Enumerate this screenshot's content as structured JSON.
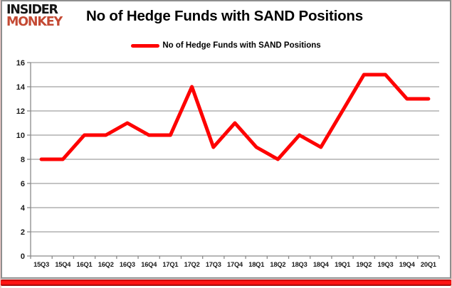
{
  "brand": {
    "line1": "INSIDER",
    "line2": "MONKEY",
    "accent_color": "#C44A34"
  },
  "title": "No of Hedge Funds with SAND Positions",
  "legend": {
    "label": "No of Hedge Funds with SAND Positions",
    "swatch_color": "#FE0000"
  },
  "colors": {
    "series_line": "#FE0000",
    "gridline": "#8A8A8A",
    "axis_text": "#1A1A1A",
    "card_border": "#8E8E8E",
    "bottom_bar": "#FF1414"
  },
  "chart_data": {
    "type": "line",
    "title": "No of Hedge Funds with SAND Positions",
    "categories": [
      "15Q3",
      "15Q4",
      "16Q1",
      "16Q2",
      "16Q3",
      "16Q4",
      "17Q1",
      "17Q2",
      "17Q3",
      "17Q4",
      "18Q1",
      "18Q2",
      "18Q3",
      "18Q4",
      "19Q1",
      "19Q2",
      "19Q3",
      "19Q4",
      "20Q1"
    ],
    "series": [
      {
        "name": "No of Hedge Funds with SAND Positions",
        "color": "#FE0000",
        "values": [
          8,
          8,
          10,
          10,
          11,
          10,
          10,
          14,
          9,
          11,
          9,
          8,
          10,
          9,
          12,
          15,
          15,
          13,
          13
        ]
      }
    ],
    "ylim": [
      0,
      16
    ],
    "ytick_step": 2,
    "yticks": [
      0,
      2,
      4,
      6,
      8,
      10,
      12,
      14,
      16
    ],
    "grid": true,
    "legend_position": "top-center"
  }
}
